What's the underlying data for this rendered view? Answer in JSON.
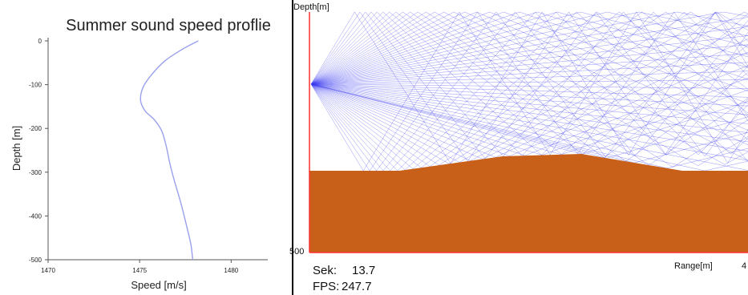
{
  "chart_data": [
    {
      "type": "line",
      "title": "Summer sound speed proflie",
      "xlabel": "Speed [m/s]",
      "ylabel": "Depth [m]",
      "xlim": [
        1470,
        1482
      ],
      "ylim": [
        -500,
        0
      ],
      "x_ticks": [
        1470,
        1475,
        1480
      ],
      "y_ticks": [
        0,
        -100,
        -200,
        -300,
        -400,
        -500
      ],
      "grid": false,
      "series": [
        {
          "color": "#9aa0ee",
          "x": [
            1478.2,
            1477.3,
            1476.4,
            1475.7,
            1475.2,
            1475.05,
            1475.3,
            1475.8,
            1476.2,
            1476.45,
            1476.65,
            1476.9,
            1477.25,
            1477.55,
            1477.8,
            1477.9
          ],
          "y": [
            0,
            -20,
            -45,
            -75,
            -105,
            -135,
            -160,
            -180,
            -205,
            -240,
            -280,
            -320,
            -370,
            -420,
            -465,
            -500
          ]
        }
      ]
    },
    {
      "type": "area",
      "top_label": "Depth[m]",
      "bottom_label": "500",
      "range_label": "Range[m]",
      "range_value": "4",
      "ray_color": "#3b3bf0",
      "axis_color": "#ff3030",
      "seabed_color": "#c8601a",
      "depth_range": [
        0,
        500
      ],
      "seabed": {
        "x": [
          0,
          0.205,
          0.44,
          0.62,
          0.85,
          1.0
        ],
        "depth": [
          330,
          330,
          300,
          295,
          330,
          330
        ]
      }
    }
  ],
  "hud": {
    "sek_label": "Sek:",
    "sek_value": "13.7",
    "fps_label": "FPS:",
    "fps_value": "247.7"
  }
}
